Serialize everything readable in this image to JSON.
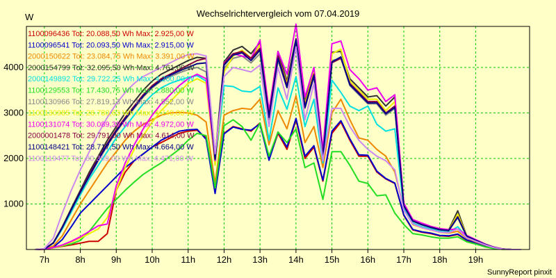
{
  "chart_data": {
    "type": "line",
    "title": "Wechselrichtervergleich vom 07.04.2019",
    "ylabel": "W",
    "xlabel": "",
    "footer": "SunnyReport pinxit",
    "ylim": [
      0,
      4900
    ],
    "xlim": [
      6.5,
      20.5
    ],
    "yticks": [
      1000,
      2000,
      3000,
      4000
    ],
    "xticks": [
      {
        "v": 7,
        "label": "7h"
      },
      {
        "v": 8,
        "label": "8h"
      },
      {
        "v": 9,
        "label": "9h"
      },
      {
        "v": 10,
        "label": "10h"
      },
      {
        "v": 11,
        "label": "11h"
      },
      {
        "v": 12,
        "label": "12h"
      },
      {
        "v": 13,
        "label": "13h"
      },
      {
        "v": 14,
        "label": "14h"
      },
      {
        "v": 15,
        "label": "15h"
      },
      {
        "v": 16,
        "label": "16h"
      },
      {
        "v": 17,
        "label": "17h"
      },
      {
        "v": 18,
        "label": "18h"
      },
      {
        "v": 19,
        "label": "19h"
      }
    ],
    "grid": true,
    "legend_position": "top-left",
    "x": [
      6.75,
      7.0,
      7.25,
      7.5,
      7.75,
      8.0,
      8.25,
      8.5,
      8.75,
      9.0,
      9.25,
      9.5,
      9.75,
      10.0,
      10.25,
      10.5,
      10.75,
      11.0,
      11.25,
      11.5,
      11.75,
      12.0,
      12.25,
      12.5,
      12.75,
      13.0,
      13.25,
      13.5,
      13.75,
      14.0,
      14.25,
      14.5,
      14.75,
      15.0,
      15.25,
      15.5,
      15.75,
      16.0,
      16.25,
      16.5,
      16.75,
      17.0,
      17.25,
      17.5,
      17.75,
      18.0,
      18.25,
      18.5,
      18.75,
      19.0,
      19.25,
      19.5,
      19.75,
      20.0,
      20.25
    ],
    "series": [
      {
        "legend": "1100096436 Tot: 20.088,50 Wh Max: 2.925,00 W",
        "color": "#cc0000",
        "values": [
          0,
          5,
          40,
          70,
          100,
          140,
          180,
          180,
          350,
          1300,
          1700,
          1950,
          2100,
          2250,
          2350,
          2450,
          2550,
          2600,
          2620,
          2450,
          1250,
          2550,
          2700,
          2650,
          2600,
          2780,
          1980,
          2550,
          2200,
          2850,
          2000,
          2250,
          1500,
          2550,
          2800,
          2400,
          2050,
          2050,
          1700,
          1550,
          1450,
          750,
          430,
          380,
          350,
          300,
          290,
          330,
          200,
          140,
          80,
          30,
          5,
          0,
          0
        ]
      },
      {
        "legend": "1100096541 Tot: 20.093,50 Wh Max: 2.915,00 W",
        "color": "#0000cc",
        "values": [
          0,
          5,
          50,
          220,
          500,
          800,
          1000,
          1200,
          1400,
          1600,
          1800,
          1950,
          2100,
          2250,
          2400,
          2500,
          2600,
          2630,
          2640,
          2420,
          1230,
          2540,
          2690,
          2640,
          2620,
          2760,
          1960,
          2580,
          2250,
          2880,
          2050,
          2280,
          1520,
          2600,
          2830,
          2430,
          2080,
          2070,
          1720,
          1560,
          1460,
          760,
          440,
          390,
          360,
          310,
          300,
          340,
          210,
          150,
          85,
          35,
          5,
          0,
          0
        ]
      },
      {
        "legend": "2000150622 Tot: 23.084,75 Wh Max: 3.391,00 W",
        "color": "#ee8800",
        "values": [
          0,
          10,
          80,
          300,
          650,
          1000,
          1300,
          1600,
          1900,
          2150,
          2400,
          2600,
          2750,
          2850,
          2950,
          3000,
          3010,
          3000,
          2950,
          2800,
          1450,
          2950,
          3050,
          3100,
          3080,
          3300,
          2300,
          3050,
          2650,
          3380,
          2350,
          2700,
          1800,
          3000,
          3300,
          2850,
          2450,
          2400,
          2200,
          2050,
          1700,
          900,
          550,
          480,
          430,
          380,
          360,
          400,
          250,
          170,
          100,
          40,
          5,
          0,
          0
        ]
      },
      {
        "legend": "2000154799 Tot: 32.095,50 Wh Max: 4.761,00 W",
        "color": "#333333",
        "values": [
          0,
          10,
          150,
          500,
          900,
          1300,
          1700,
          2050,
          2400,
          2700,
          3000,
          3250,
          3500,
          3700,
          3850,
          3950,
          4050,
          4150,
          4220,
          4200,
          2050,
          4120,
          4380,
          4460,
          4300,
          4550,
          3000,
          4350,
          3700,
          4630,
          3250,
          3950,
          2100,
          4330,
          4350,
          3750,
          3550,
          3350,
          3380,
          3150,
          3350,
          1000,
          650,
          570,
          500,
          450,
          430,
          850,
          300,
          210,
          120,
          50,
          10,
          0,
          0
        ]
      },
      {
        "legend": "2000149892 Tot: 29.722,25 Wh Max: 4.200,00 W",
        "color": "#00e0e0",
        "values": [
          0,
          10,
          140,
          450,
          820,
          1200,
          1550,
          1850,
          2150,
          2450,
          2700,
          2950,
          3200,
          3400,
          3550,
          3650,
          3720,
          3780,
          3820,
          3700,
          1850,
          3600,
          3580,
          3480,
          3460,
          3580,
          2400,
          3550,
          3080,
          3800,
          2700,
          3300,
          1900,
          3720,
          3450,
          3150,
          3050,
          3150,
          2750,
          2600,
          2650,
          900,
          580,
          500,
          450,
          400,
          380,
          500,
          270,
          190,
          110,
          45,
          10,
          0,
          0
        ]
      },
      {
        "legend": "1100129553 Tot: 17.430,75 Wh Max: 2.880,00 W",
        "color": "#22dd22",
        "values": [
          0,
          5,
          40,
          80,
          120,
          200,
          400,
          650,
          900,
          1100,
          1300,
          1480,
          1650,
          1780,
          1900,
          2050,
          2200,
          2400,
          2550,
          2500,
          1350,
          2720,
          2850,
          2700,
          2400,
          2780,
          2050,
          2580,
          2350,
          2650,
          1800,
          1900,
          1100,
          2150,
          2150,
          1850,
          1500,
          1450,
          1180,
          1200,
          800,
          550,
          350,
          320,
          280,
          250,
          250,
          280,
          170,
          120,
          60,
          20,
          5,
          0,
          0
        ]
      },
      {
        "legend": "1100130966 Tot: 27.819,13 Wh Max: 4.552,00 W",
        "color": "#888888",
        "values": [
          0,
          10,
          140,
          480,
          870,
          1250,
          1600,
          1950,
          2280,
          2580,
          2850,
          3100,
          3350,
          3550,
          3700,
          3800,
          3880,
          3950,
          4000,
          3900,
          1950,
          3980,
          4200,
          4250,
          4100,
          4300,
          2850,
          4150,
          3550,
          4450,
          3100,
          3800,
          2000,
          4150,
          4200,
          3600,
          3400,
          3200,
          3200,
          2950,
          3100,
          950,
          620,
          540,
          480,
          430,
          410,
          700,
          290,
          200,
          115,
          48,
          10,
          0,
          0
        ]
      },
      {
        "legend": "1100130985 Tot: 28.780,63 Wh Max: 4.740,00 W",
        "color": "#eeee00",
        "values": [
          0,
          5,
          40,
          90,
          160,
          250,
          350,
          450,
          700,
          1300,
          1800,
          2200,
          2500,
          2800,
          3050,
          3250,
          3450,
          3650,
          3750,
          3650,
          1850,
          3900,
          4250,
          4380,
          4200,
          4500,
          2950,
          4250,
          3650,
          4550,
          3200,
          3900,
          2050,
          4300,
          4400,
          3700,
          3500,
          3300,
          3300,
          3050,
          3250,
          980,
          640,
          560,
          490,
          440,
          420,
          780,
          300,
          210,
          118,
          50,
          10,
          0,
          0
        ]
      },
      {
        "legend": "1100131074 Tot: 30.089,38 Wh Max: 4.972,00 W",
        "color": "#ee00ee",
        "values": [
          0,
          5,
          45,
          100,
          180,
          280,
          400,
          520,
          560,
          1400,
          1900,
          2300,
          2650,
          2950,
          3200,
          3400,
          3600,
          3750,
          3850,
          3750,
          1950,
          4100,
          4300,
          4250,
          4200,
          4600,
          3050,
          4350,
          3850,
          4950,
          3350,
          4000,
          2200,
          4520,
          4580,
          3950,
          3750,
          3500,
          3550,
          3250,
          3400,
          1020,
          660,
          580,
          510,
          460,
          440,
          450,
          310,
          220,
          125,
          55,
          12,
          0,
          0
        ]
      },
      {
        "legend": "2000001478 Tot: 29.791,00 Wh Max: 4.614,00 W",
        "color": "#880044",
        "values": [
          0,
          10,
          145,
          490,
          880,
          1270,
          1650,
          2000,
          2330,
          2630,
          2900,
          3150,
          3400,
          3600,
          3750,
          3850,
          3950,
          4050,
          4150,
          4200,
          2000,
          4080,
          4300,
          4350,
          4200,
          4420,
          2950,
          4250,
          3600,
          4550,
          3150,
          3850,
          2050,
          4100,
          4200,
          3650,
          3450,
          3250,
          3250,
          3000,
          3150,
          970,
          630,
          550,
          490,
          440,
          420,
          720,
          295,
          205,
          118,
          50,
          10,
          0,
          0
        ]
      },
      {
        "legend": "1100148421 Tot: 28.717,50 Wh Max: 4.664,00 W",
        "color": "#000088",
        "values": [
          0,
          10,
          142,
          485,
          875,
          1260,
          1620,
          1970,
          2300,
          2600,
          2870,
          3120,
          3370,
          3570,
          3720,
          3830,
          3920,
          4000,
          4080,
          4100,
          1980,
          4050,
          4270,
          4320,
          4150,
          4380,
          2900,
          4200,
          3560,
          4600,
          3120,
          3820,
          2020,
          4120,
          4230,
          3620,
          3420,
          3220,
          3220,
          2980,
          3120,
          960,
          625,
          545,
          485,
          435,
          415,
          710,
          292,
          202,
          116,
          49,
          10,
          0,
          0
        ]
      },
      {
        "legend": "1100119477 Tot: 30.359,00 Wh Max: 4.471,00 W",
        "color": "#cc88ee",
        "values": [
          0,
          20,
          250,
          800,
          1300,
          1750,
          2150,
          2550,
          2900,
          3200,
          3450,
          3650,
          3800,
          3900,
          4000,
          4100,
          4200,
          4280,
          4300,
          4250,
          2100,
          3800,
          4000,
          3950,
          3900,
          4050,
          2700,
          4000,
          3300,
          4450,
          2850,
          3650,
          1950,
          3100,
          3100,
          2700,
          2400,
          2200,
          2050,
          1950,
          1750,
          860,
          560,
          480,
          430,
          380,
          370,
          450,
          260,
          180,
          105,
          43,
          8,
          0,
          0
        ]
      }
    ]
  }
}
